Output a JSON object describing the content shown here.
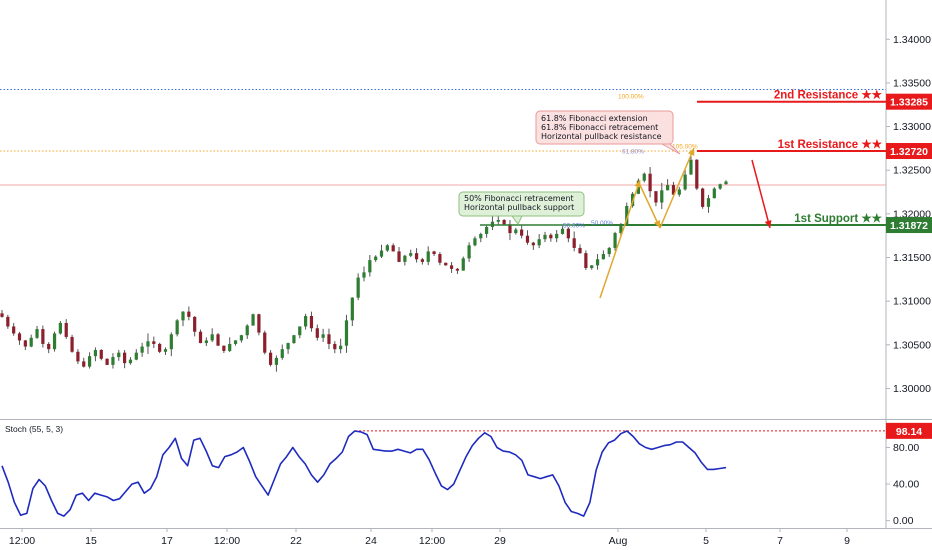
{
  "chart_data": [
    {
      "type": "candlestick",
      "instrument": "",
      "price_axis": {
        "ticks": [
          "1.34000",
          "1.33500",
          "1.33000",
          "1.32500",
          "1.32000",
          "1.31500",
          "1.31000",
          "1.30500",
          "1.30000"
        ],
        "ylim": [
          1.2965,
          1.3445
        ]
      },
      "time_axis": {
        "ticks": [
          "12:00",
          "15",
          "17",
          "12:00",
          "22",
          "24",
          "12:00",
          "29",
          "Aug",
          "5",
          "7",
          "9"
        ]
      },
      "levels": [
        {
          "label": "2nd Resistance ★★",
          "price": 1.33285,
          "value_text": "1.33285",
          "color": "#e8191b"
        },
        {
          "label": "1st Resistance ★★",
          "price": 1.3272,
          "value_text": "1.32720",
          "color": "#e8191b"
        },
        {
          "label": "1st Support ★★",
          "price": 1.31872,
          "value_text": "1.31872",
          "color": "#2e7d32"
        }
      ],
      "horizontal_lines": [
        {
          "price": 1.33425,
          "color": "#3a6fd8",
          "style": "dotted"
        },
        {
          "price": 1.3272,
          "color": "#f5a623",
          "style": "dotted"
        },
        {
          "price": 1.3233,
          "color": "#f3a9a9",
          "style": "solid"
        }
      ],
      "fibonacci_labels": [
        {
          "text": "100.00%",
          "price": 1.3331,
          "color": "#f5a623"
        },
        {
          "text": "105.00%",
          "price": 1.32735,
          "color": "#f5a623"
        },
        {
          "text": "61.80%",
          "price": 1.3268,
          "color": "#9c8ccf"
        },
        {
          "text": "50.00%",
          "price": 1.31835,
          "color": "#5b7bd5"
        },
        {
          "text": "50.00%",
          "price": 1.3186,
          "color": "#5b7bd5"
        }
      ],
      "annotations": [
        {
          "lines": [
            "61.8% Fibonacci extension",
            "61.8% Fibonacci retracement",
            "Horizontal pullback resistance"
          ],
          "color": "#fbe0e0"
        },
        {
          "lines": [
            "50% Fibonacci retracement",
            "Horizontal pullback support"
          ],
          "color": "#dff0d8"
        }
      ],
      "series": [
        {
          "name": "",
          "values": [
            1.3082,
            1.3071,
            1.3063,
            1.3055,
            1.3048,
            1.3058,
            1.3068,
            1.3051,
            1.3045,
            1.3063,
            1.3075,
            1.3059,
            1.3042,
            1.3031,
            1.3025,
            1.3037,
            1.3044,
            1.3034,
            1.3027,
            1.3036,
            1.3041,
            1.3029,
            1.3033,
            1.3041,
            1.3048,
            1.3054,
            1.3051,
            1.3042,
            1.3045,
            1.3062,
            1.3078,
            1.3088,
            1.3082,
            1.3065,
            1.3052,
            1.3055,
            1.3062,
            1.3049,
            1.3043,
            1.3051,
            1.3055,
            1.3061,
            1.3072,
            1.3085,
            1.3064,
            1.3041,
            1.3027,
            1.3035,
            1.3045,
            1.3052,
            1.3061,
            1.3071,
            1.3083,
            1.3069,
            1.3058,
            1.3062,
            1.3051,
            1.3045,
            1.3049,
            1.3078,
            1.3104,
            1.3127,
            1.3133,
            1.3147,
            1.3151,
            1.3158,
            1.3164,
            1.3157,
            1.3145,
            1.3152,
            1.3155,
            1.3148,
            1.3145,
            1.3157,
            1.3154,
            1.3144,
            1.3141,
            1.3137,
            1.3135,
            1.3149,
            1.3164,
            1.3172,
            1.3177,
            1.3185,
            1.3191,
            1.3193,
            1.3188,
            1.3178,
            1.3182,
            1.3175,
            1.3167,
            1.3164,
            1.3171,
            1.3176,
            1.3172,
            1.3177,
            1.3183,
            1.3172,
            1.3161,
            1.3155,
            1.3138,
            1.3141,
            1.3148,
            1.3154,
            1.3161,
            1.3178,
            1.3188,
            1.3209,
            1.3223,
            1.3238,
            1.3246,
            1.3226,
            1.3213,
            1.3227,
            1.3233,
            1.3222,
            1.3228,
            1.3245,
            1.3262,
            1.3229,
            1.3208,
            1.3218,
            1.3229,
            1.3234,
            1.3237
          ]
        },
        {
          "name": "Stoch (55, 5, 3)",
          "value_text": "98.14",
          "ticks": [
            "80.00",
            "40.00",
            "0.00"
          ],
          "ylim": [
            -8,
            110
          ],
          "reference_value": 98.14,
          "values": [
            60,
            42,
            20,
            6,
            8,
            35,
            45,
            38,
            22,
            8,
            5,
            12,
            28,
            30,
            22,
            30,
            28,
            26,
            22,
            24,
            32,
            40,
            42,
            30,
            35,
            48,
            72,
            80,
            90,
            68,
            60,
            88,
            90,
            76,
            60,
            58,
            70,
            72,
            75,
            80,
            65,
            48,
            38,
            28,
            45,
            62,
            70,
            80,
            70,
            62,
            50,
            42,
            50,
            62,
            68,
            75,
            92,
            98,
            97,
            94,
            78,
            77,
            76,
            76,
            78,
            76,
            74,
            78,
            78,
            67,
            52,
            38,
            34,
            40,
            55,
            70,
            82,
            90,
            96,
            92,
            80,
            76,
            75,
            72,
            66,
            50,
            48,
            46,
            48,
            50,
            38,
            20,
            10,
            8,
            5,
            20,
            55,
            75,
            85,
            88,
            95,
            98,
            92,
            84,
            80,
            78,
            80,
            82,
            83,
            86,
            86,
            80,
            74,
            64,
            56,
            56,
            57,
            58
          ]
        }
      ]
    }
  ]
}
